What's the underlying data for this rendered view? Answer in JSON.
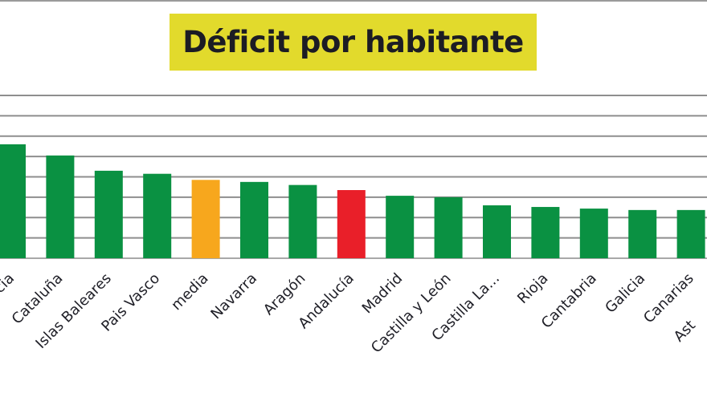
{
  "chart_data": {
    "type": "bar",
    "title": "Déficit por habitante",
    "xlabel": "",
    "ylabel": "",
    "y_units": "gridline units (axis tick labels not visible)",
    "ylim": [
      0,
      8
    ],
    "grid": true,
    "gridlines": [
      1,
      2,
      3,
      4,
      5,
      6,
      7,
      8
    ],
    "categories": [
      "cia",
      "Cataluña",
      "Islas Baleares",
      "Pais Vasco",
      "media",
      "Navarra",
      "Aragón",
      "Andalucía",
      "Madrid",
      "Castilla y León",
      "Castilla La...",
      "Rioja",
      "Cantabria",
      "Galicia",
      "Canarias",
      "Ast"
    ],
    "values": [
      5.6,
      5.05,
      4.3,
      4.15,
      3.85,
      3.75,
      3.6,
      3.35,
      3.07,
      3.0,
      2.6,
      2.52,
      2.44,
      2.37,
      2.37,
      null
    ],
    "bar_colors": [
      "#0a9142",
      "#0a9142",
      "#0a9142",
      "#0a9142",
      "#f7a71d",
      "#0a9142",
      "#0a9142",
      "#e91f29",
      "#0a9142",
      "#0a9142",
      "#0a9142",
      "#0a9142",
      "#0a9142",
      "#0a9142",
      "#0a9142",
      "#0a9142"
    ],
    "colors": {
      "region": "#0a9142",
      "average": "#f7a71d",
      "highlight": "#e91f29",
      "title_background": "#e2da2c",
      "grid": "#8e8e8e"
    }
  }
}
